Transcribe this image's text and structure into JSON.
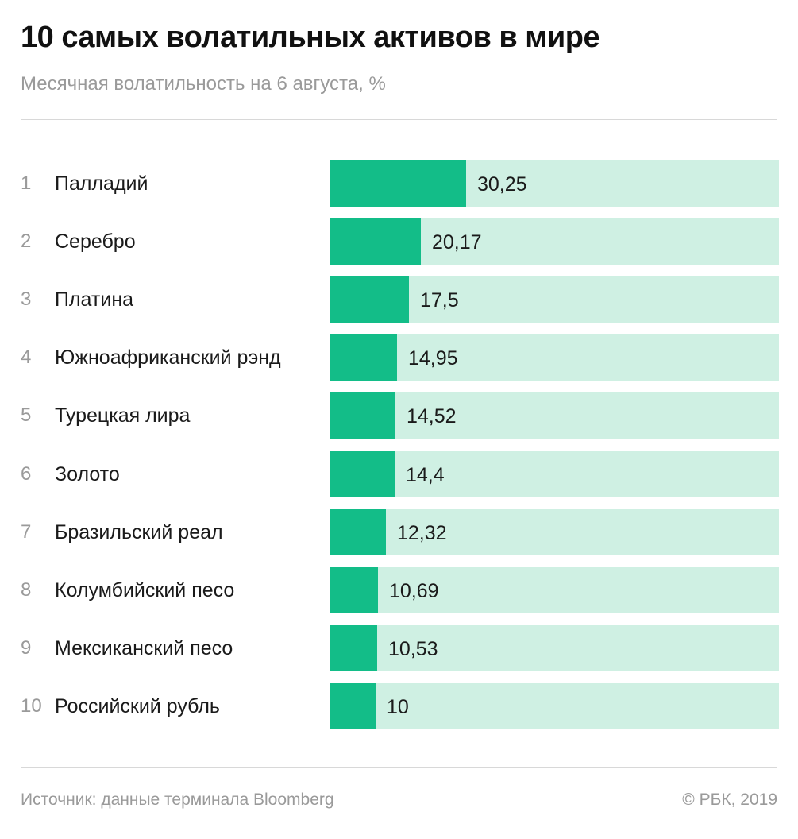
{
  "header": {
    "title": "10 самых волатильных активов в мире",
    "subtitle": "Месячная волатильность на 6 августа, %"
  },
  "footer": {
    "source": "Источник: данные терминала Bloomberg",
    "copyright": "© РБК, 2019"
  },
  "colors": {
    "bar": "#13bd88",
    "track": "#cff0e3"
  },
  "chart_data": {
    "type": "bar",
    "orientation": "horizontal",
    "title": "10 самых волатильных активов в мире",
    "subtitle": "Месячная волатильность на 6 августа, %",
    "ranks": [
      "1",
      "2",
      "3",
      "4",
      "5",
      "6",
      "7",
      "8",
      "9",
      "10"
    ],
    "categories": [
      "Палладий",
      "Серебро",
      "Платина",
      "Южноафриканский рэнд",
      "Турецкая лира",
      "Золото",
      "Бразильский реал",
      "Колумбийский песо",
      "Мексиканский песо",
      "Российский рубль"
    ],
    "values": [
      30.25,
      20.17,
      17.5,
      14.95,
      14.52,
      14.4,
      12.32,
      10.69,
      10.53,
      10
    ],
    "value_labels": [
      "30,25",
      "20,17",
      "17,5",
      "14,95",
      "14,52",
      "14,4",
      "12,32",
      "10,69",
      "10,53",
      "10"
    ],
    "xlim": [
      0,
      100
    ],
    "grid": false,
    "legend": "none"
  }
}
